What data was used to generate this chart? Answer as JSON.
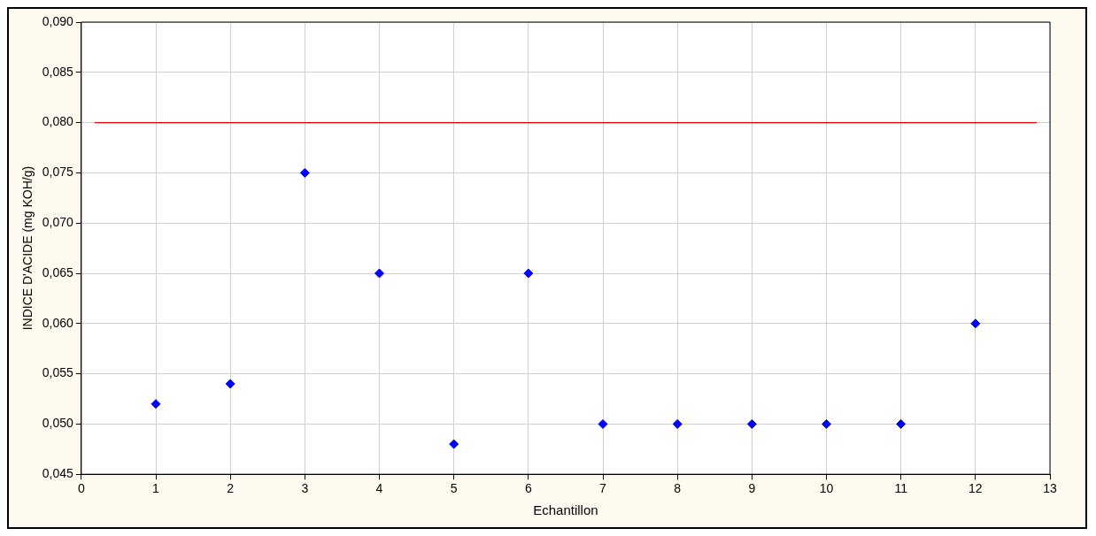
{
  "chart_data": {
    "type": "scatter",
    "xlabel": "Echantillon",
    "ylabel": "INDICE D'ACIDE (mg KOH/g)",
    "series": [
      {
        "color": "#0000ff",
        "x": [
          1,
          2,
          3,
          4,
          5,
          6,
          7,
          8,
          9,
          10,
          11,
          12
        ],
        "values": [
          0.052,
          0.054,
          0.075,
          0.065,
          0.048,
          0.065,
          0.05,
          0.05,
          0.05,
          0.05,
          0.05,
          0.06
        ]
      }
    ],
    "xlim": [
      0,
      13
    ],
    "xticks": [
      0,
      1,
      2,
      3,
      4,
      5,
      6,
      7,
      8,
      9,
      10,
      11,
      12,
      13
    ],
    "ylim": [
      0.045,
      0.09
    ],
    "yticks": [
      {
        "value": 0.045,
        "label": "0,045"
      },
      {
        "value": 0.05,
        "label": "0,050"
      },
      {
        "value": 0.055,
        "label": "0,055"
      },
      {
        "value": 0.06,
        "label": "0,060"
      },
      {
        "value": 0.065,
        "label": "0,065"
      },
      {
        "value": 0.07,
        "label": "0,070"
      },
      {
        "value": 0.075,
        "label": "0,075"
      },
      {
        "value": 0.08,
        "label": "0,080"
      },
      {
        "value": 0.085,
        "label": "0,085"
      },
      {
        "value": 0.09,
        "label": "0,090"
      }
    ],
    "ref_lines": [
      {
        "axis": "y",
        "value": 0.08,
        "color": "#ff0000"
      }
    ],
    "grid": true,
    "legend": false,
    "marker": "diamond"
  }
}
